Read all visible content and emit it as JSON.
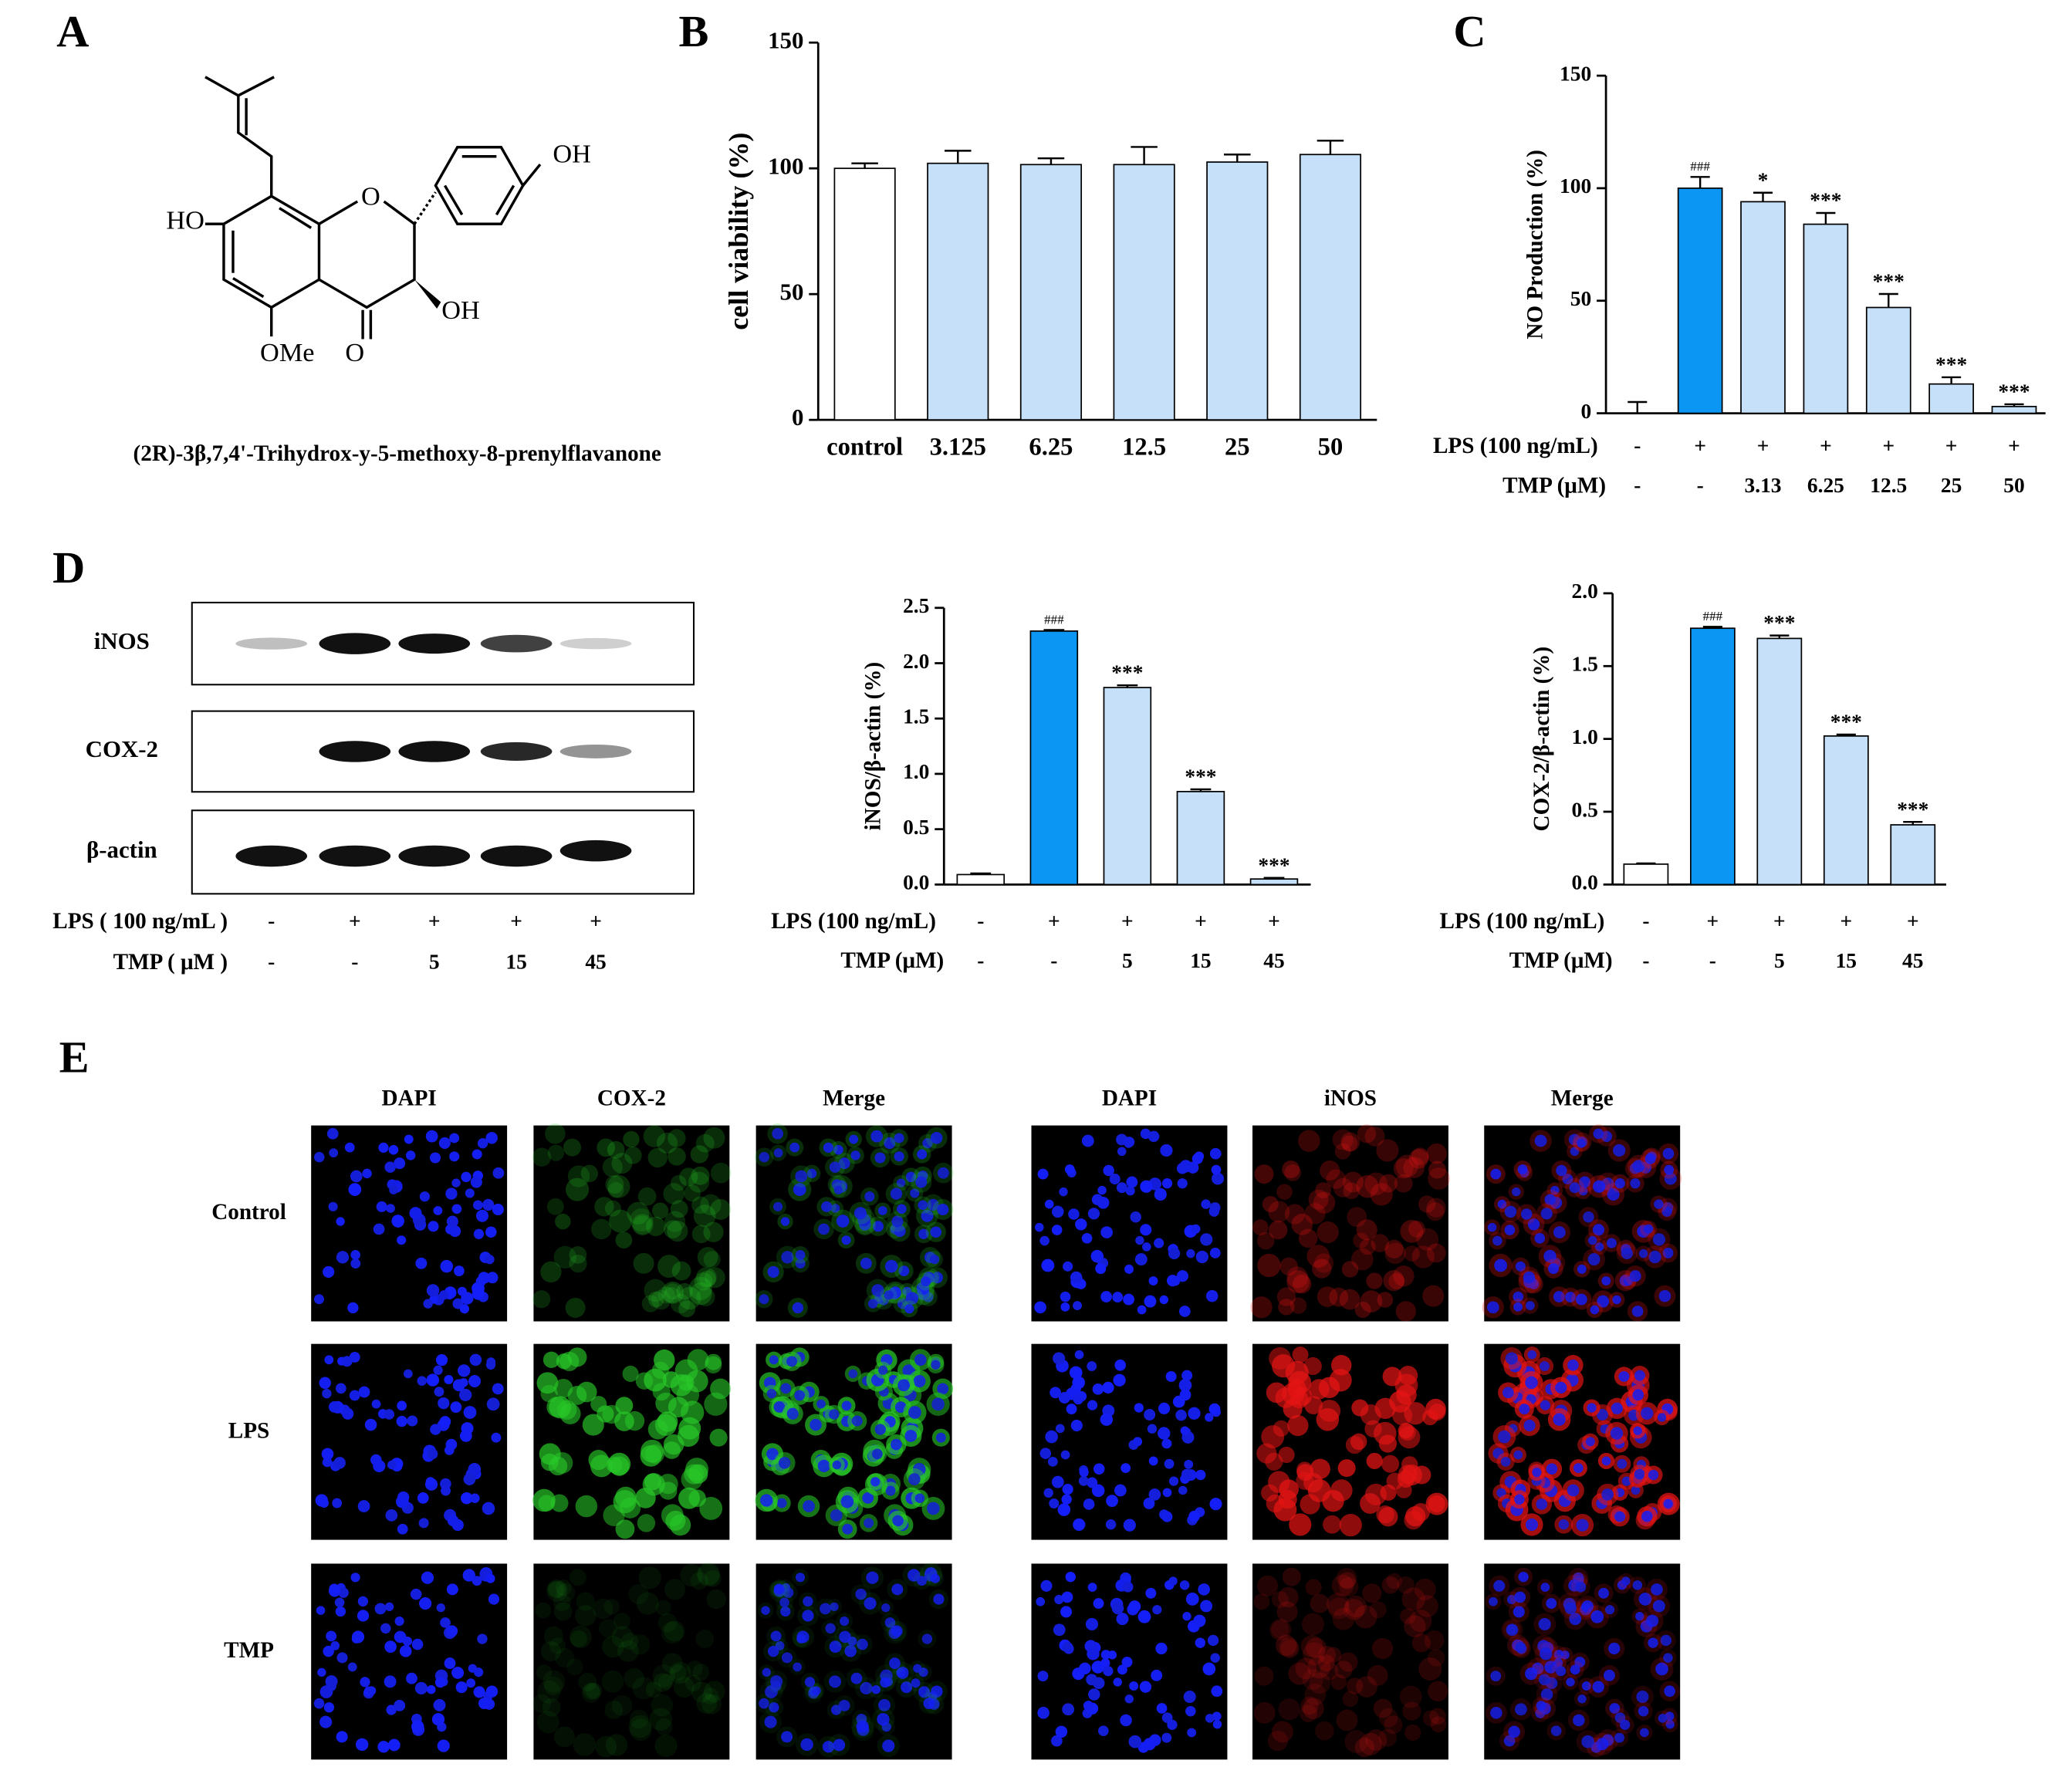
{
  "panel_labels": [
    "A",
    "B",
    "C",
    "D",
    "E"
  ],
  "structure": {
    "atoms": [
      "OH",
      "HO",
      "O",
      "OH",
      "OMe",
      "O"
    ],
    "caption": "(2R)-3β,7,4'-Trihydrox-y-5-methoxy-8-prenylflavanone"
  },
  "blot": {
    "proteins": [
      "iNOS",
      "COX-2",
      "β-actin"
    ],
    "conditions": [
      {
        "label": "LPS ( 100 ng/mL )",
        "values": [
          "-",
          "+",
          "+",
          "+",
          "+"
        ]
      },
      {
        "label": "TMP ( μM )",
        "values": [
          "-",
          "-",
          "5",
          "15",
          "45"
        ]
      }
    ]
  },
  "microscopy": {
    "left_columns": [
      "DAPI",
      "COX-2",
      "Merge"
    ],
    "right_columns": [
      "DAPI",
      "iNOS",
      "Merge"
    ],
    "rows": [
      "Control",
      "LPS",
      "TMP"
    ]
  },
  "chart_data": [
    {
      "type": "bar",
      "ylabel": "cell viability (%)",
      "categories": [
        "control",
        "3.125",
        "6.25",
        "12.5",
        "25",
        "50"
      ],
      "values": [
        100,
        102,
        101.5,
        101.5,
        102.5,
        105.5
      ],
      "errors": [
        2,
        5,
        2.5,
        7,
        3,
        5.5
      ],
      "colors": [
        "#ffffff",
        "#c5e0f8",
        "#c5e0f8",
        "#c5e0f8",
        "#c5e0f8",
        "#c5e0f8"
      ],
      "ylim": [
        0,
        150
      ],
      "yticks": [
        0,
        50,
        100,
        150
      ]
    },
    {
      "type": "bar",
      "ylabel": "NO Production (%)",
      "conditions": [
        {
          "label": "LPS (100 ng/mL)",
          "values": [
            "-",
            "+",
            "+",
            "+",
            "+",
            "+",
            "+"
          ]
        },
        {
          "label": "TMP (μM)",
          "values": [
            "-",
            "-",
            "3.13",
            "6.25",
            "12.5",
            "25",
            "50"
          ]
        }
      ],
      "values": [
        0,
        100,
        94,
        84,
        47,
        13,
        3
      ],
      "errors": [
        5,
        5,
        4,
        5,
        6,
        3,
        1
      ],
      "annotations": [
        null,
        "###",
        "*",
        "***",
        "***",
        "***",
        "***"
      ],
      "colors": [
        "#ffffff",
        "#0a96f2",
        "#c5e0f8",
        "#c5e0f8",
        "#c5e0f8",
        "#c5e0f8",
        "#c5e0f8"
      ],
      "ylim": [
        0,
        150
      ],
      "yticks": [
        0,
        50,
        100,
        150
      ]
    },
    {
      "type": "bar",
      "ylabel": "iNOS/β-actin (%)",
      "conditions": [
        {
          "label": "LPS (100 ng/mL)",
          "values": [
            "-",
            "+",
            "+",
            "+",
            "+"
          ]
        },
        {
          "label": "TMP (μM)",
          "values": [
            "-",
            "-",
            "5",
            "15",
            "45"
          ]
        }
      ],
      "values": [
        0.09,
        2.29,
        1.78,
        0.84,
        0.05
      ],
      "errors": [
        0.01,
        0.01,
        0.02,
        0.02,
        0.01
      ],
      "annotations": [
        null,
        "###",
        "***",
        "***",
        "***"
      ],
      "colors": [
        "#ffffff",
        "#0a96f2",
        "#c5e0f8",
        "#c5e0f8",
        "#c5e0f8"
      ],
      "ylim": [
        0,
        2.5
      ],
      "yticks": [
        {
          "value": 0,
          "label": "0.0"
        },
        0.5,
        {
          "value": 1,
          "label": "1.0"
        },
        1.5,
        {
          "value": 2,
          "label": "2.0"
        },
        2.5
      ]
    },
    {
      "type": "bar",
      "ylabel": "COX-2/β-actin (%)",
      "conditions": [
        {
          "label": "LPS (100 ng/mL)",
          "values": [
            "-",
            "+",
            "+",
            "+",
            "+"
          ]
        },
        {
          "label": "TMP (μM)",
          "values": [
            "-",
            "-",
            "5",
            "15",
            "45"
          ]
        }
      ],
      "values": [
        0.14,
        1.76,
        1.69,
        1.02,
        0.41
      ],
      "errors": [
        0.005,
        0.01,
        0.02,
        0.01,
        0.02
      ],
      "annotations": [
        null,
        "###",
        "***",
        "***",
        "***"
      ],
      "colors": [
        "#ffffff",
        "#0a96f2",
        "#c5e0f8",
        "#c5e0f8",
        "#c5e0f8"
      ],
      "ylim": [
        0,
        2.0
      ],
      "yticks": [
        {
          "value": 0,
          "label": "0.0"
        },
        0.5,
        {
          "value": 1,
          "label": "1.0"
        },
        1.5,
        {
          "value": 2,
          "label": "2.0"
        }
      ]
    }
  ]
}
